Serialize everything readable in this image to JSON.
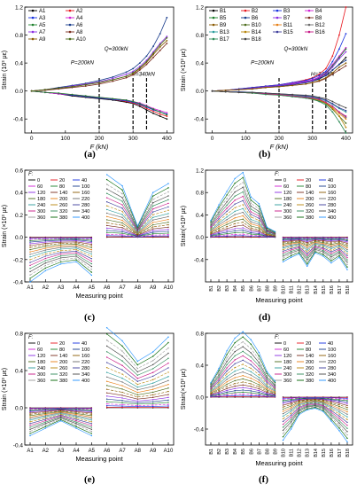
{
  "panels": [
    {
      "id": "a",
      "caption": "(a)",
      "ylabel": "Strain (10³ με)",
      "xlabel": "F (kN)",
      "ylim": [
        -0.6,
        1.2
      ],
      "yticks": [
        "-0.4",
        "0.0",
        "0.4",
        "0.8",
        "1.2"
      ],
      "xticks": [
        "0",
        "100",
        "200",
        "300",
        "400"
      ],
      "legend": [
        "A1",
        "A2",
        "A3",
        "A4",
        "A5",
        "A6",
        "A7",
        "A8",
        "A9",
        "A10"
      ],
      "annotations": [
        "P=200kN",
        "Q=300kN",
        "H=340kN"
      ]
    },
    {
      "id": "b",
      "caption": "(b)",
      "ylabel": "Strain (×10³ με)",
      "xlabel": "F (kN)",
      "ylim": [
        -0.6,
        1.2
      ],
      "yticks": [
        "-0.4",
        "0.0",
        "0.4",
        "0.8",
        "1.2"
      ],
      "xticks": [
        "0",
        "100",
        "200",
        "300",
        "400"
      ],
      "legend": [
        "B1",
        "B2",
        "B3",
        "B4",
        "B5",
        "B6",
        "B7",
        "B8",
        "B9",
        "B10",
        "B11",
        "B12",
        "B13",
        "B14",
        "B15",
        "B16",
        "B17",
        "B18"
      ],
      "annotations": [
        "P=200kN",
        "Q=300kN",
        "H=340kN"
      ]
    },
    {
      "id": "c",
      "caption": "(c)",
      "ylabel": "Strain (×10³ με)",
      "xlabel": "Measuring point",
      "ylim": [
        -0.4,
        0.6
      ],
      "yticks": [
        "-0.4",
        "-0.2",
        "0.0",
        "0.2",
        "0.4",
        "0.6"
      ],
      "xticks": [
        "A1",
        "A2",
        "A3",
        "A4",
        "A5",
        "A6",
        "A7",
        "A8",
        "A9",
        "A10"
      ],
      "legend_title": "F:",
      "legend": [
        "0",
        "20",
        "40",
        "60",
        "80",
        "100",
        "120",
        "140",
        "160",
        "180",
        "200",
        "220",
        "240",
        "260",
        "280",
        "300",
        "320",
        "340",
        "360",
        "380",
        "400"
      ]
    },
    {
      "id": "d",
      "caption": "(d)",
      "ylabel": "Strain(×10³ με)",
      "xlabel": "Measuring point",
      "ylim": [
        -0.8,
        1.2
      ],
      "yticks": [
        "-0.4",
        "0.0",
        "0.4",
        "0.8",
        "1.2"
      ],
      "xticks": [
        "B1",
        "B2",
        "B3",
        "B4",
        "B5",
        "B6",
        "B7",
        "B8",
        "B9",
        "B10",
        "B11",
        "B12",
        "B13",
        "B14",
        "B15",
        "B16",
        "B17",
        "B18"
      ],
      "legend_title": "F:",
      "legend": [
        "0",
        "20",
        "40",
        "60",
        "80",
        "100",
        "120",
        "140",
        "160",
        "180",
        "200",
        "220",
        "240",
        "260",
        "280",
        "300",
        "320",
        "340",
        "360",
        "380",
        "400"
      ]
    },
    {
      "id": "e",
      "caption": "(e)",
      "ylabel": "Strain (×10³ με)",
      "xlabel": "Measuring point",
      "ylim": [
        -0.4,
        0.8
      ],
      "yticks": [
        "-0.4",
        "0.0",
        "0.4",
        "0.8"
      ],
      "xticks": [
        "A1",
        "A2",
        "A3",
        "A4",
        "A5",
        "A6",
        "A7",
        "A8",
        "A9",
        "A10"
      ],
      "legend_title": "F:",
      "legend": [
        "0",
        "20",
        "40",
        "60",
        "80",
        "100",
        "120",
        "140",
        "160",
        "180",
        "200",
        "220",
        "240",
        "260",
        "280",
        "300",
        "320",
        "340",
        "360",
        "380",
        "400"
      ]
    },
    {
      "id": "f",
      "caption": "(f)",
      "ylabel": "Strain(×10³ με)",
      "xlabel": "Measuring point",
      "ylim": [
        -0.6,
        0.8
      ],
      "yticks": [
        "-0.4",
        "0.0",
        "0.4",
        "0.8"
      ],
      "xticks": [
        "B1",
        "B2",
        "B3",
        "B4",
        "B5",
        "B6",
        "B7",
        "B8",
        "B9",
        "B10",
        "B11",
        "B12",
        "B13",
        "B14",
        "B15",
        "B16",
        "B17",
        "B18"
      ],
      "legend_title": "F:",
      "legend": [
        "0",
        "20",
        "40",
        "60",
        "80",
        "100",
        "120",
        "140",
        "160",
        "180",
        "200",
        "220",
        "240",
        "260",
        "280",
        "300",
        "320",
        "340",
        "360",
        "380",
        "400"
      ]
    }
  ],
  "colors": [
    "#000000",
    "#e8161e",
    "#1530e0",
    "#d21fd3",
    "#1b7f2a",
    "#163a8a",
    "#8a2be2",
    "#7a2b1c",
    "#8a5a00",
    "#4a6b1a",
    "#e77e14",
    "#6a6a6a",
    "#2b9c9c",
    "#b8860b",
    "#3b3b9a",
    "#c71585",
    "#2e8b57",
    "#444444",
    "#999999",
    "#006400",
    "#1e90ff"
  ],
  "chart_data": [
    {
      "type": "line",
      "title": "",
      "xlabel": "F (kN)",
      "ylabel": "Strain (10³ με)",
      "x": [
        0,
        40,
        80,
        120,
        160,
        200,
        240,
        280,
        300,
        320,
        340,
        360,
        380,
        400
      ],
      "series": [
        {
          "name": "A1",
          "values": [
            0,
            -0.02,
            -0.04,
            -0.07,
            -0.09,
            -0.11,
            -0.13,
            -0.16,
            -0.18,
            -0.22,
            -0.27,
            -0.32,
            -0.36,
            -0.4
          ]
        },
        {
          "name": "A2",
          "values": [
            0,
            -0.02,
            -0.04,
            -0.06,
            -0.08,
            -0.1,
            -0.12,
            -0.15,
            -0.17,
            -0.2,
            -0.25,
            -0.29,
            -0.33,
            -0.36
          ]
        },
        {
          "name": "A3",
          "values": [
            0,
            -0.02,
            -0.04,
            -0.06,
            -0.08,
            -0.1,
            -0.12,
            -0.14,
            -0.16,
            -0.19,
            -0.23,
            -0.27,
            -0.3,
            -0.33
          ]
        },
        {
          "name": "A4",
          "values": [
            0,
            -0.02,
            -0.04,
            -0.05,
            -0.07,
            -0.09,
            -0.11,
            -0.13,
            -0.15,
            -0.17,
            -0.21,
            -0.25,
            -0.28,
            -0.31
          ]
        },
        {
          "name": "A5",
          "values": [
            0,
            -0.02,
            -0.03,
            -0.05,
            -0.07,
            -0.09,
            -0.11,
            -0.13,
            -0.15,
            -0.18,
            -0.22,
            -0.26,
            -0.3,
            -0.34
          ]
        },
        {
          "name": "A6",
          "values": [
            0,
            0.02,
            0.05,
            0.08,
            0.11,
            0.15,
            0.2,
            0.27,
            0.32,
            0.4,
            0.5,
            0.64,
            0.82,
            1.05
          ]
        },
        {
          "name": "A7",
          "values": [
            0,
            0.02,
            0.04,
            0.07,
            0.1,
            0.13,
            0.18,
            0.24,
            0.28,
            0.35,
            0.44,
            0.56,
            0.68,
            0.78
          ]
        },
        {
          "name": "A8",
          "values": [
            0,
            0.01,
            0.03,
            0.05,
            0.07,
            0.1,
            0.14,
            0.19,
            0.23,
            0.3,
            0.38,
            0.48,
            0.58,
            0.68
          ]
        },
        {
          "name": "A9",
          "values": [
            0,
            0.02,
            0.04,
            0.06,
            0.09,
            0.12,
            0.16,
            0.21,
            0.25,
            0.32,
            0.41,
            0.52,
            0.63,
            0.72
          ]
        },
        {
          "name": "A10",
          "values": [
            0,
            0.02,
            0.04,
            0.06,
            0.09,
            0.12,
            0.16,
            0.21,
            0.26,
            0.33,
            0.42,
            0.54,
            0.66,
            0.76
          ]
        }
      ],
      "xlim": [
        -20,
        420
      ],
      "ylim": [
        -0.6,
        1.2
      ],
      "markers": {
        "x": [
          200,
          300,
          340
        ],
        "labels": [
          "P=200kN",
          "Q=300kN",
          "H=340kN"
        ]
      },
      "legend_placement": "top-left",
      "grid": false
    },
    {
      "type": "line",
      "title": "",
      "xlabel": "F (kN)",
      "ylabel": "Strain (×10³ με)",
      "x": [
        0,
        40,
        80,
        120,
        160,
        200,
        240,
        280,
        300,
        320,
        340,
        360,
        380,
        400
      ],
      "series": [
        {
          "name": "B1",
          "values": [
            0,
            0.01,
            0.02,
            0.04,
            0.06,
            0.08,
            0.1,
            0.13,
            0.15,
            0.18,
            0.22,
            0.3,
            0.38,
            0.48
          ]
        },
        {
          "name": "B2",
          "values": [
            0,
            0.01,
            0.03,
            0.05,
            0.07,
            0.09,
            0.12,
            0.16,
            0.19,
            0.24,
            0.32,
            0.5,
            0.8,
            1.2
          ]
        },
        {
          "name": "B3",
          "values": [
            0,
            0.01,
            0.03,
            0.05,
            0.07,
            0.09,
            0.12,
            0.15,
            0.18,
            0.22,
            0.28,
            0.42,
            0.6,
            0.82
          ]
        },
        {
          "name": "B4",
          "values": [
            0,
            0.01,
            0.02,
            0.04,
            0.06,
            0.08,
            0.11,
            0.14,
            0.16,
            0.2,
            0.26,
            0.38,
            0.5,
            0.62
          ]
        },
        {
          "name": "B5",
          "values": [
            0,
            0.01,
            0.02,
            0.04,
            0.06,
            0.08,
            0.1,
            0.13,
            0.15,
            0.19,
            0.25,
            0.36,
            0.48,
            0.6
          ]
        },
        {
          "name": "B6",
          "values": [
            0,
            0.01,
            0.02,
            0.03,
            0.05,
            0.07,
            0.09,
            0.12,
            0.14,
            0.17,
            0.22,
            0.3,
            0.38,
            0.44
          ]
        },
        {
          "name": "B7",
          "values": [
            0,
            0.01,
            0.02,
            0.04,
            0.06,
            0.08,
            0.1,
            0.13,
            0.15,
            0.19,
            0.24,
            0.34,
            0.46,
            0.56
          ]
        },
        {
          "name": "B8",
          "values": [
            0,
            0.01,
            0.02,
            0.03,
            0.05,
            0.06,
            0.08,
            0.1,
            0.12,
            0.14,
            0.18,
            0.24,
            0.3,
            0.36
          ]
        },
        {
          "name": "B9",
          "values": [
            0,
            0.01,
            0.02,
            0.03,
            0.05,
            0.06,
            0.08,
            0.1,
            0.12,
            0.15,
            0.19,
            0.26,
            0.34,
            0.4
          ]
        },
        {
          "name": "B10",
          "values": [
            0,
            -0.01,
            -0.02,
            -0.03,
            -0.04,
            -0.06,
            -0.08,
            -0.1,
            -0.12,
            -0.14,
            -0.18,
            -0.26,
            -0.36,
            -0.46
          ]
        },
        {
          "name": "B11",
          "values": [
            0,
            -0.01,
            -0.02,
            -0.03,
            -0.04,
            -0.05,
            -0.07,
            -0.09,
            -0.11,
            -0.13,
            -0.17,
            -0.24,
            -0.32,
            -0.4
          ]
        },
        {
          "name": "B12",
          "values": [
            0,
            -0.01,
            -0.02,
            -0.03,
            -0.04,
            -0.05,
            -0.06,
            -0.08,
            -0.1,
            -0.12,
            -0.16,
            -0.22,
            -0.3,
            -0.38
          ]
        },
        {
          "name": "B13",
          "values": [
            0,
            -0.01,
            -0.01,
            -0.02,
            -0.03,
            -0.05,
            -0.06,
            -0.08,
            -0.09,
            -0.11,
            -0.14,
            -0.19,
            -0.25,
            -0.3
          ]
        },
        {
          "name": "B14",
          "values": [
            0,
            -0.01,
            -0.02,
            -0.03,
            -0.04,
            -0.06,
            -0.07,
            -0.09,
            -0.11,
            -0.13,
            -0.17,
            -0.25,
            -0.36,
            -0.52
          ]
        },
        {
          "name": "B15",
          "values": [
            0,
            -0.01,
            -0.01,
            -0.02,
            -0.03,
            -0.04,
            -0.05,
            -0.07,
            -0.08,
            -0.1,
            -0.13,
            -0.18,
            -0.24,
            -0.28
          ]
        },
        {
          "name": "B16",
          "values": [
            0,
            -0.01,
            -0.02,
            -0.03,
            -0.04,
            -0.05,
            -0.07,
            -0.09,
            -0.1,
            -0.12,
            -0.16,
            -0.22,
            -0.3,
            -0.36
          ]
        },
        {
          "name": "B17",
          "values": [
            0,
            -0.01,
            -0.02,
            -0.03,
            -0.05,
            -0.06,
            -0.08,
            -0.1,
            -0.12,
            -0.15,
            -0.2,
            -0.3,
            -0.44,
            -0.6
          ]
        },
        {
          "name": "B18",
          "values": [
            0,
            -0.01,
            -0.02,
            -0.02,
            -0.03,
            -0.04,
            -0.05,
            -0.06,
            -0.07,
            -0.09,
            -0.11,
            -0.15,
            -0.2,
            -0.24
          ]
        }
      ],
      "xlim": [
        -20,
        420
      ],
      "ylim": [
        -0.6,
        1.2
      ],
      "markers": {
        "x": [
          200,
          300,
          340
        ],
        "labels": [
          "P=200kN",
          "Q=300kN",
          "H=340kN"
        ]
      },
      "legend_placement": "top-left",
      "grid": false
    },
    {
      "type": "line",
      "title": "",
      "xlabel": "Measuring point",
      "ylabel": "Strain (×10³ με)",
      "categories": [
        "A1",
        "A2",
        "A3",
        "A4",
        "A5",
        "A6",
        "A7",
        "A8",
        "A9",
        "A10"
      ],
      "groups": [
        [
          0,
          1,
          2,
          3,
          4
        ],
        [
          5,
          6,
          7,
          8,
          9
        ]
      ],
      "base": [
        -0.4,
        -0.3,
        -0.24,
        -0.22,
        -0.34,
        0.56,
        0.46,
        0.1,
        0.4,
        0.48
      ],
      "series_note": "F = 0 to 400 kN in 20 kN steps; strain grows roughly with load",
      "ylim": [
        -0.4,
        0.6
      ],
      "legend_placement": "top-left",
      "grid": false
    },
    {
      "type": "line",
      "title": "",
      "xlabel": "Measuring point",
      "ylabel": "Strain(×10³ με)",
      "categories": [
        "B1",
        "B2",
        "B3",
        "B4",
        "B5",
        "B6",
        "B7",
        "B8",
        "B9",
        "B10",
        "B11",
        "B12",
        "B13",
        "B14",
        "B15",
        "B16",
        "B17",
        "B18"
      ],
      "groups": [
        [
          0,
          1,
          2,
          3,
          4,
          5,
          6,
          7,
          8
        ],
        [
          9,
          10,
          11,
          12,
          13,
          14,
          15,
          16,
          17
        ]
      ],
      "base": [
        0.3,
        0.58,
        0.82,
        1.05,
        1.16,
        0.72,
        0.6,
        0.18,
        0.1,
        -0.44,
        -0.36,
        -0.3,
        -0.52,
        -0.28,
        -0.34,
        -0.46,
        -0.36,
        -0.58
      ],
      "series_note": "F = 0 to 400 kN in 20 kN steps",
      "ylim": [
        -0.8,
        1.2
      ],
      "legend_placement": "top-right",
      "grid": false
    },
    {
      "type": "line",
      "title": "",
      "xlabel": "Measuring point",
      "ylabel": "Strain (×10³ με)",
      "categories": [
        "A1",
        "A2",
        "A3",
        "A4",
        "A5",
        "A6",
        "A7",
        "A8",
        "A9",
        "A10"
      ],
      "groups": [
        [
          0,
          1,
          2,
          3,
          4
        ],
        [
          5,
          6,
          7,
          8,
          9
        ]
      ],
      "base": [
        -0.3,
        -0.22,
        -0.14,
        -0.22,
        -0.3,
        0.86,
        0.72,
        0.5,
        0.6,
        0.76
      ],
      "series_note": "F = 0 to 400 kN in 20 kN steps",
      "ylim": [
        -0.4,
        0.8
      ],
      "legend_placement": "top-left",
      "grid": false
    },
    {
      "type": "line",
      "title": "",
      "xlabel": "Measuring point",
      "ylabel": "Strain(×10³ με)",
      "categories": [
        "B1",
        "B2",
        "B3",
        "B4",
        "B5",
        "B6",
        "B7",
        "B8",
        "B9",
        "B10",
        "B11",
        "B12",
        "B13",
        "B14",
        "B15",
        "B16",
        "B17",
        "B18"
      ],
      "groups": [
        [
          0,
          1,
          2,
          3,
          4,
          5,
          6,
          7,
          8
        ],
        [
          9,
          10,
          11,
          12,
          13,
          14,
          15,
          16,
          17
        ]
      ],
      "base": [
        0.18,
        0.36,
        0.58,
        0.74,
        0.82,
        0.72,
        0.56,
        0.32,
        0.2,
        -0.54,
        -0.4,
        -0.22,
        -0.16,
        -0.14,
        -0.18,
        -0.3,
        -0.42,
        -0.56
      ],
      "series_note": "F = 0 to 400 kN in 20 kN steps",
      "ylim": [
        -0.6,
        0.8
      ],
      "legend_placement": "top-right",
      "grid": false
    }
  ]
}
